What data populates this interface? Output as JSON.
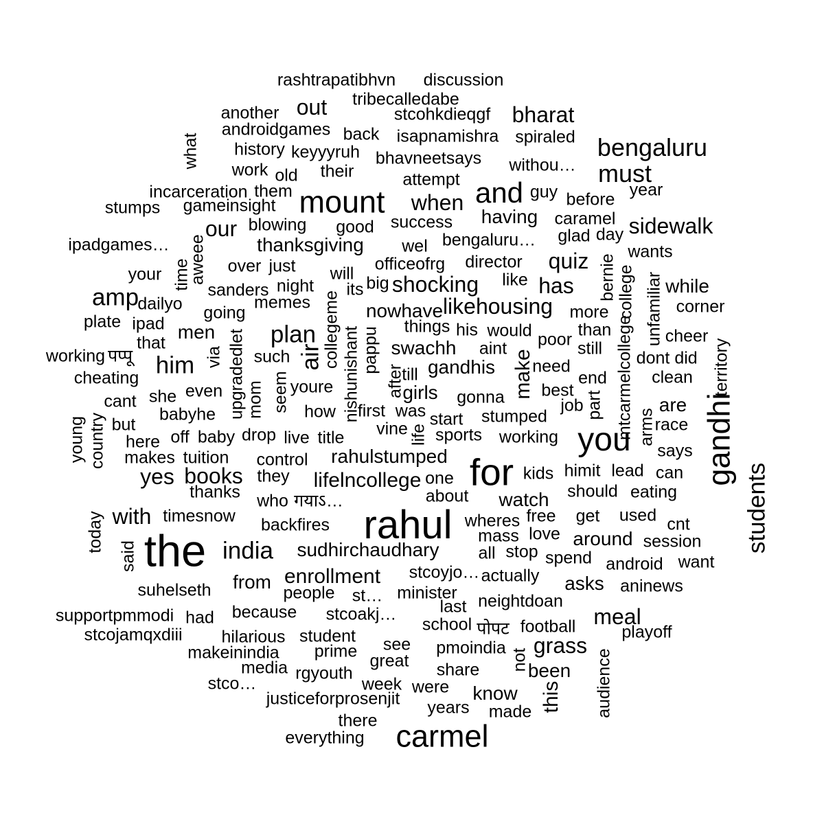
{
  "text_color": "#000000",
  "background": "#ffffff",
  "words": [
    {
      "t": "rashtrapatibhvn",
      "w": 3
    },
    {
      "t": "discussion",
      "w": 3
    },
    {
      "t": "tribecalledabe",
      "w": 3
    },
    {
      "t": "out",
      "w": 4
    },
    {
      "t": "another",
      "w": 3
    },
    {
      "t": "stcohkdieqgf",
      "w": 3
    },
    {
      "t": "bharat",
      "w": 4
    },
    {
      "t": "androidgames",
      "w": 3
    },
    {
      "t": "back",
      "w": 3
    },
    {
      "t": "isapnamishra",
      "w": 3
    },
    {
      "t": "spiraled",
      "w": 3
    },
    {
      "t": "what",
      "w": 3
    },
    {
      "t": "bengaluru",
      "w": 4
    },
    {
      "t": "history",
      "w": 3
    },
    {
      "t": "keyyyruh",
      "w": 3
    },
    {
      "t": "bhavneetsays",
      "w": 3
    },
    {
      "t": "withou…",
      "w": 3
    },
    {
      "t": "work",
      "w": 3
    },
    {
      "t": "old",
      "w": 3
    },
    {
      "t": "their",
      "w": 3
    },
    {
      "t": "must",
      "w": 4
    },
    {
      "t": "attempt",
      "w": 3
    },
    {
      "t": "incarceration",
      "w": 3
    },
    {
      "t": "them",
      "w": 3
    },
    {
      "t": "mount",
      "w": 5
    },
    {
      "t": "and",
      "w": 5
    },
    {
      "t": "guy",
      "w": 3
    },
    {
      "t": "year",
      "w": 3
    },
    {
      "t": "before",
      "w": 3
    },
    {
      "t": "stumps",
      "w": 3
    },
    {
      "t": "gameinsight",
      "w": 3
    },
    {
      "t": "when",
      "w": 4
    },
    {
      "t": "having",
      "w": 3
    },
    {
      "t": "caramel",
      "w": 3
    },
    {
      "t": "sidewalk",
      "w": 4
    },
    {
      "t": "our",
      "w": 4
    },
    {
      "t": "blowing",
      "w": 3
    },
    {
      "t": "good",
      "w": 3
    },
    {
      "t": "success",
      "w": 3
    },
    {
      "t": "glad",
      "w": 3
    },
    {
      "t": "day",
      "w": 3
    },
    {
      "t": "ipadgames…",
      "w": 3
    },
    {
      "t": "aweee",
      "w": 3
    },
    {
      "t": "thanksgiving",
      "w": 3
    },
    {
      "t": "wel",
      "w": 3
    },
    {
      "t": "bengaluru…",
      "w": 3
    },
    {
      "t": "wants",
      "w": 3
    },
    {
      "t": "time",
      "w": 3
    },
    {
      "t": "over",
      "w": 3
    },
    {
      "t": "just",
      "w": 3
    },
    {
      "t": "officeofrg",
      "w": 3
    },
    {
      "t": "director",
      "w": 3
    },
    {
      "t": "quiz",
      "w": 4
    },
    {
      "t": "your",
      "w": 3
    },
    {
      "t": "will",
      "w": 3
    },
    {
      "t": "bernie",
      "w": 3
    },
    {
      "t": "unfamiliar",
      "w": 3
    },
    {
      "t": "sanders",
      "w": 3
    },
    {
      "t": "night",
      "w": 3
    },
    {
      "t": "its",
      "w": 3
    },
    {
      "t": "big",
      "w": 3
    },
    {
      "t": "shocking",
      "w": 4
    },
    {
      "t": "like",
      "w": 3
    },
    {
      "t": "has",
      "w": 4
    },
    {
      "t": "while",
      "w": 3
    },
    {
      "t": "amp",
      "w": 4
    },
    {
      "t": "dailyo",
      "w": 3
    },
    {
      "t": "memes",
      "w": 3
    },
    {
      "t": "collegeme",
      "w": 3
    },
    {
      "t": "likehousing",
      "w": 4
    },
    {
      "t": "college",
      "w": 3
    },
    {
      "t": "corner",
      "w": 3
    },
    {
      "t": "going",
      "w": 3
    },
    {
      "t": "nowhave",
      "w": 4
    },
    {
      "t": "more",
      "w": 3
    },
    {
      "t": "plate",
      "w": 3
    },
    {
      "t": "ipad",
      "w": 3
    },
    {
      "t": "things",
      "w": 3
    },
    {
      "t": "his",
      "w": 3
    },
    {
      "t": "would",
      "w": 3
    },
    {
      "t": "than",
      "w": 3
    },
    {
      "t": "that",
      "w": 3
    },
    {
      "t": "men",
      "w": 3
    },
    {
      "t": "plan",
      "w": 4
    },
    {
      "t": "upgradedlet",
      "w": 3
    },
    {
      "t": "nishunishant",
      "w": 3
    },
    {
      "t": "pappu",
      "w": 3
    },
    {
      "t": "aint",
      "w": 3
    },
    {
      "t": "poor",
      "w": 3
    },
    {
      "t": "cheer",
      "w": 3
    },
    {
      "t": "territory",
      "w": 3
    },
    {
      "t": "working",
      "w": 3
    },
    {
      "t": "पप्पू",
      "w": 3
    },
    {
      "t": "him",
      "w": 4
    },
    {
      "t": "via",
      "w": 3
    },
    {
      "t": "such",
      "w": 3
    },
    {
      "t": "air",
      "w": 4
    },
    {
      "t": "swachh",
      "w": 4
    },
    {
      "t": "make",
      "w": 4
    },
    {
      "t": "still",
      "w": 3
    },
    {
      "t": "dont",
      "w": 3
    },
    {
      "t": "did",
      "w": 3
    },
    {
      "t": "cheating",
      "w": 3
    },
    {
      "t": "gandhis",
      "w": 4
    },
    {
      "t": "need",
      "w": 3
    },
    {
      "t": "mtcarmelcollege",
      "w": 3
    },
    {
      "t": "after",
      "w": 3
    },
    {
      "t": "till",
      "w": 3
    },
    {
      "t": "end",
      "w": 3
    },
    {
      "t": "clean",
      "w": 3
    },
    {
      "t": "she",
      "w": 3
    },
    {
      "t": "even",
      "w": 3
    },
    {
      "t": "mom",
      "w": 3
    },
    {
      "t": "seem",
      "w": 3
    },
    {
      "t": "youre",
      "w": 3
    },
    {
      "t": "girls",
      "w": 3
    },
    {
      "t": "gonna",
      "w": 3
    },
    {
      "t": "best",
      "w": 3
    },
    {
      "t": "cant",
      "w": 3
    },
    {
      "t": "part",
      "w": 3
    },
    {
      "t": "are",
      "w": 3
    },
    {
      "t": "gandhi",
      "w": 5
    },
    {
      "t": "young",
      "w": 3
    },
    {
      "t": "country",
      "w": 3
    },
    {
      "t": "babyhe",
      "w": 3
    },
    {
      "t": "how",
      "w": 3
    },
    {
      "t": "first",
      "w": 3
    },
    {
      "t": "was",
      "w": 3
    },
    {
      "t": "stumped",
      "w": 3
    },
    {
      "t": "job",
      "w": 3
    },
    {
      "t": "race",
      "w": 3
    },
    {
      "t": "but",
      "w": 3
    },
    {
      "t": "start",
      "w": 3
    },
    {
      "t": "arms",
      "w": 3
    },
    {
      "t": "students",
      "w": 4
    },
    {
      "t": "here",
      "w": 3
    },
    {
      "t": "off",
      "w": 3
    },
    {
      "t": "baby",
      "w": 3
    },
    {
      "t": "drop",
      "w": 3
    },
    {
      "t": "live",
      "w": 3
    },
    {
      "t": "title",
      "w": 3
    },
    {
      "t": "vine",
      "w": 3
    },
    {
      "t": "life",
      "w": 3
    },
    {
      "t": "sports",
      "w": 3
    },
    {
      "t": "working",
      "w": 3
    },
    {
      "t": "you",
      "w": 5
    },
    {
      "t": "makes",
      "w": 3
    },
    {
      "t": "tuition",
      "w": 3
    },
    {
      "t": "control",
      "w": 3
    },
    {
      "t": "rahulstumped",
      "w": 4
    },
    {
      "t": "says",
      "w": 3
    },
    {
      "t": "yes",
      "w": 4
    },
    {
      "t": "books",
      "w": 4
    },
    {
      "t": "they",
      "w": 3
    },
    {
      "t": "lifelncollege",
      "w": 4
    },
    {
      "t": "one",
      "w": 3
    },
    {
      "t": "for",
      "w": 5
    },
    {
      "t": "kids",
      "w": 3
    },
    {
      "t": "himit",
      "w": 3
    },
    {
      "t": "lead",
      "w": 3
    },
    {
      "t": "can",
      "w": 3
    },
    {
      "t": "thanks",
      "w": 3
    },
    {
      "t": "who",
      "w": 3
    },
    {
      "t": "गयाऽ…",
      "w": 3
    },
    {
      "t": "about",
      "w": 3
    },
    {
      "t": "watch",
      "w": 4
    },
    {
      "t": "should",
      "w": 3
    },
    {
      "t": "eating",
      "w": 3
    },
    {
      "t": "today",
      "w": 3
    },
    {
      "t": "with",
      "w": 4
    },
    {
      "t": "timesnow",
      "w": 3
    },
    {
      "t": "rahul",
      "w": 6
    },
    {
      "t": "wheres",
      "w": 3
    },
    {
      "t": "free",
      "w": 3
    },
    {
      "t": "get",
      "w": 3
    },
    {
      "t": "used",
      "w": 3
    },
    {
      "t": "cnt",
      "w": 3
    },
    {
      "t": "backfires",
      "w": 3
    },
    {
      "t": "mass",
      "w": 3
    },
    {
      "t": "love",
      "w": 3
    },
    {
      "t": "around",
      "w": 4
    },
    {
      "t": "session",
      "w": 3
    },
    {
      "t": "said",
      "w": 3
    },
    {
      "t": "the",
      "w": 6
    },
    {
      "t": "india",
      "w": 4
    },
    {
      "t": "sudhirchaudhary",
      "w": 4
    },
    {
      "t": "all",
      "w": 3
    },
    {
      "t": "stop",
      "w": 3
    },
    {
      "t": "spend",
      "w": 3
    },
    {
      "t": "android",
      "w": 3
    },
    {
      "t": "want",
      "w": 3
    },
    {
      "t": "from",
      "w": 4
    },
    {
      "t": "enrollment",
      "w": 4
    },
    {
      "t": "stcoyjo…",
      "w": 3
    },
    {
      "t": "actually",
      "w": 3
    },
    {
      "t": "asks",
      "w": 3
    },
    {
      "t": "aninews",
      "w": 3
    },
    {
      "t": "suhelseth",
      "w": 3
    },
    {
      "t": "people",
      "w": 3
    },
    {
      "t": "st…",
      "w": 3
    },
    {
      "t": "minister",
      "w": 3
    },
    {
      "t": "neightdoan",
      "w": 3
    },
    {
      "t": "last",
      "w": 3
    },
    {
      "t": "supportpmmodi",
      "w": 3
    },
    {
      "t": "had",
      "w": 3
    },
    {
      "t": "because",
      "w": 3
    },
    {
      "t": "stcoakj…",
      "w": 3
    },
    {
      "t": "meal",
      "w": 4
    },
    {
      "t": "school",
      "w": 3
    },
    {
      "t": "पोपट",
      "w": 3
    },
    {
      "t": "football",
      "w": 3
    },
    {
      "t": "stcojamqxdiii",
      "w": 3
    },
    {
      "t": "hilarious",
      "w": 3
    },
    {
      "t": "student",
      "w": 3
    },
    {
      "t": "playoff",
      "w": 3
    },
    {
      "t": "see",
      "w": 3
    },
    {
      "t": "grass",
      "w": 4
    },
    {
      "t": "makeinindia",
      "w": 3
    },
    {
      "t": "prime",
      "w": 3
    },
    {
      "t": "pmoindia",
      "w": 3
    },
    {
      "t": "great",
      "w": 3
    },
    {
      "t": "not",
      "w": 3
    },
    {
      "t": "audience",
      "w": 3
    },
    {
      "t": "media",
      "w": 3
    },
    {
      "t": "share",
      "w": 3
    },
    {
      "t": "been",
      "w": 3
    },
    {
      "t": "rgyouth",
      "w": 3
    },
    {
      "t": "stco…",
      "w": 3
    },
    {
      "t": "week",
      "w": 3
    },
    {
      "t": "were",
      "w": 3
    },
    {
      "t": "know",
      "w": 3
    },
    {
      "t": "this",
      "w": 4
    },
    {
      "t": "justiceforprosenjit",
      "w": 3
    },
    {
      "t": "years",
      "w": 3
    },
    {
      "t": "made",
      "w": 3
    },
    {
      "t": "there",
      "w": 3
    },
    {
      "t": "carmel",
      "w": 5
    },
    {
      "t": "everything",
      "w": 3
    }
  ]
}
